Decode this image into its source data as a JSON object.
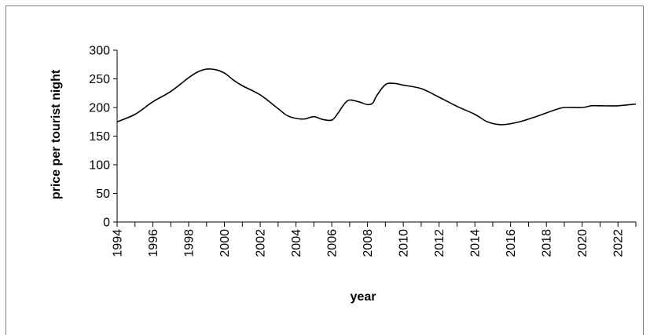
{
  "chart_data": {
    "type": "line",
    "title": "",
    "xlabel": "year",
    "ylabel": "price per tourist night",
    "xlim": [
      1994,
      2023
    ],
    "ylim": [
      0,
      300
    ],
    "yticks": [
      0,
      50,
      100,
      150,
      200,
      250,
      300
    ],
    "xticks": [
      1994,
      1996,
      1998,
      2000,
      2002,
      2004,
      2006,
      2008,
      2010,
      2012,
      2014,
      2016,
      2018,
      2020,
      2022
    ],
    "grid": false,
    "legend": "none",
    "line_color": "#000000",
    "series": [
      {
        "x": [
          1994,
          1995,
          1996,
          1997,
          1998,
          1998.5,
          1999,
          1999.5,
          2000,
          2000.5,
          2001,
          2002,
          2003,
          2003.5,
          2004,
          2004.5,
          2005,
          2005.5,
          2006,
          2006.3,
          2006.7,
          2007,
          2007.5,
          2008,
          2008.3,
          2008.5,
          2009,
          2009.5,
          2010,
          2011,
          2012,
          2013,
          2014,
          2014.7,
          2015.5,
          2016.5,
          2017.5,
          2018.5,
          2019,
          2020,
          2020.5,
          2021,
          2022,
          2023
        ],
        "y": [
          175,
          188,
          210,
          228,
          252,
          262,
          267,
          266,
          260,
          248,
          238,
          222,
          198,
          186,
          181,
          180,
          184,
          179,
          178,
          188,
          206,
          213,
          210,
          205,
          208,
          220,
          240,
          242,
          239,
          233,
          218,
          202,
          188,
          175,
          170,
          175,
          185,
          196,
          200,
          200,
          203,
          203,
          203,
          206
        ]
      }
    ]
  }
}
